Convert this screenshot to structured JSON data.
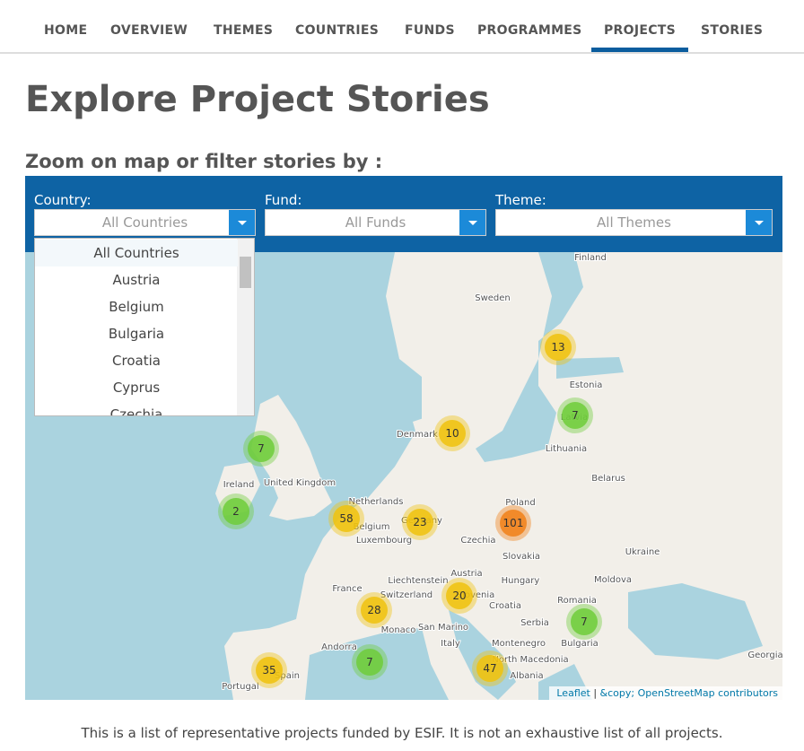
{
  "nav": {
    "items": [
      "HOME",
      "OVERVIEW",
      "THEMES",
      "COUNTRIES",
      "FUNDS",
      "PROGRAMMES",
      "PROJECTS",
      "STORIES"
    ],
    "active": 6
  },
  "header": {
    "title": "Explore Project Stories",
    "subtitle": "Zoom on map or filter stories by :"
  },
  "filters": [
    {
      "label": "Country:",
      "placeholder": "All Countries"
    },
    {
      "label": "Fund:",
      "placeholder": "All Funds"
    },
    {
      "label": "Theme:",
      "placeholder": "All Themes"
    }
  ],
  "dropdown": {
    "options": [
      "All Countries",
      "Austria",
      "Belgium",
      "Bulgaria",
      "Croatia",
      "Cyprus",
      "Czechia"
    ]
  },
  "map": {
    "labels": [
      "Finland",
      "Sweden",
      "Estonia",
      "Latvia",
      "Denmark",
      "Lithuania",
      "Belarus",
      "Ireland",
      "United Kingdom",
      "Netherlands",
      "Poland",
      "Belgium",
      "Germany",
      "Luxembourg",
      "Czechia",
      "Slovakia",
      "Ukraine",
      "Liechtenstein",
      "Austria",
      "Moldova",
      "Switzerland",
      "Hungary",
      "France",
      "Slovenia",
      "Romania",
      "Croatia",
      "Monaco",
      "San Marino",
      "Serbia",
      "Andorra",
      "Italy",
      "Montenegro",
      "Bulgaria",
      "Georgia",
      "North Macedonia",
      "Spain",
      "Albania",
      "Portugal"
    ],
    "clusters": [
      {
        "count": "13",
        "color": "#f0c20c"
      },
      {
        "count": "7",
        "color": "#6ecc39"
      },
      {
        "count": "10",
        "color": "#f0c20c"
      },
      {
        "count": "7",
        "color": "#6ecc39"
      },
      {
        "count": "2",
        "color": "#6ecc39"
      },
      {
        "count": "58",
        "color": "#f0c20c"
      },
      {
        "count": "23",
        "color": "#f0c20c"
      },
      {
        "count": "101",
        "color": "#f18017"
      },
      {
        "count": "20",
        "color": "#f0c20c"
      },
      {
        "count": "28",
        "color": "#f0c20c"
      },
      {
        "count": "7",
        "color": "#6ecc39"
      },
      {
        "count": "7",
        "color": "#6ecc39"
      },
      {
        "count": "35",
        "color": "#f0c20c"
      },
      {
        "count": "47",
        "color": "#f0c20c"
      }
    ],
    "attribution": {
      "leaflet": "Leaflet",
      "osm": "&copy; OpenStreetMap contributors"
    }
  },
  "footer": {
    "text": "This is a list of representative projects funded by ESIF. It is not an exhaustive list of all projects."
  }
}
